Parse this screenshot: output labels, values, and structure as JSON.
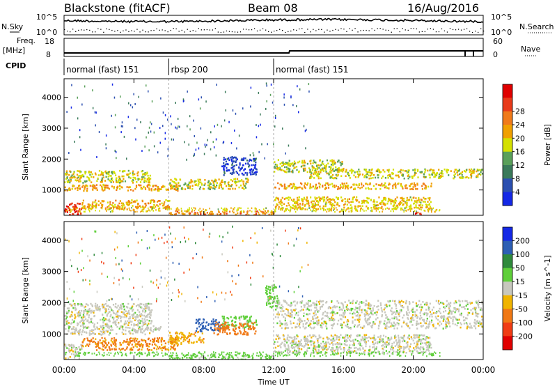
{
  "header": {
    "station": "Blackstone (fitACF)",
    "beam": "Beam 08",
    "date": "16/Aug/2016"
  },
  "top_panels": {
    "nsky_label": "N.Sky",
    "nsearch_label": "N.Search",
    "noise_ticks_left": [
      "10^5",
      "10^0"
    ],
    "noise_ticks_right": [
      "10^5",
      "10^0"
    ],
    "freq_label": "Freq.",
    "freq_unit": "[MHz]",
    "freq_ticks": [
      "18",
      "8"
    ],
    "nave_label": "Nave",
    "nave_ticks": [
      "60",
      "0"
    ],
    "cpid_label": "CPID",
    "cpid_segments": [
      {
        "label": "normal (fast) 151",
        "start_hour": 0,
        "end_hour": 6
      },
      {
        "label": "rbsp 200",
        "start_hour": 6,
        "end_hour": 12
      },
      {
        "label": "normal (fast) 151",
        "start_hour": 12,
        "end_hour": 24
      }
    ]
  },
  "chart_data": [
    {
      "type": "heatmap",
      "title": "",
      "xlabel": "Time UT",
      "ylabel": "Slant Range [km]",
      "x_ticks": [
        "00:00",
        "04:00",
        "08:00",
        "12:00",
        "16:00",
        "20:00",
        "00:00"
      ],
      "x_tick_hours": [
        0,
        4,
        8,
        12,
        16,
        20,
        24
      ],
      "xlim": [
        0,
        24
      ],
      "y_ticks": [
        1000,
        2000,
        3000,
        4000
      ],
      "ylim": [
        180,
        4600
      ],
      "colorbar": {
        "label": "Power [dB]",
        "ticks": [
          "4",
          "8",
          "12",
          "16",
          "20",
          "24",
          "28"
        ],
        "colors": [
          "#1428e6",
          "#2b4fb0",
          "#3a7a5a",
          "#5aa05a",
          "#d4e000",
          "#f0a000",
          "#f07a1a",
          "#e83a1a",
          "#e00000"
        ]
      },
      "echo_bands": [
        {
          "start_hour": 0.0,
          "end_hour": 5.0,
          "range_km": [
            1250,
            1650
          ],
          "level": 16
        },
        {
          "start_hour": 0.0,
          "end_hour": 6.5,
          "range_km": [
            1000,
            1200
          ],
          "level": 20
        },
        {
          "start_hour": 0.0,
          "end_hour": 1.0,
          "range_km": [
            200,
            600
          ],
          "level": 28
        },
        {
          "start_hour": 1.0,
          "end_hour": 6.0,
          "range_km": [
            400,
            700
          ],
          "level": 20
        },
        {
          "start_hour": 6.0,
          "end_hour": 10.5,
          "range_km": [
            1050,
            1400
          ],
          "level": 16
        },
        {
          "start_hour": 6.0,
          "end_hour": 12.0,
          "range_km": [
            200,
            350
          ],
          "level": 22
        },
        {
          "start_hour": 9.0,
          "end_hour": 11.0,
          "range_km": [
            1500,
            2100
          ],
          "level": 4
        },
        {
          "start_hour": 12.0,
          "end_hour": 16.0,
          "range_km": [
            1600,
            2000
          ],
          "level": 16
        },
        {
          "start_hour": 12.0,
          "end_hour": 21.0,
          "range_km": [
            1050,
            1250
          ],
          "level": 20
        },
        {
          "start_hour": 14.0,
          "end_hour": 24.0,
          "range_km": [
            1400,
            1700
          ],
          "level": 16
        },
        {
          "start_hour": 12.0,
          "end_hour": 21.0,
          "range_km": [
            400,
            800
          ],
          "level": 18
        },
        {
          "start_hour": 20.0,
          "end_hour": 20.6,
          "range_km": [
            200,
            300
          ],
          "level": 28
        }
      ]
    },
    {
      "type": "heatmap",
      "title": "",
      "xlabel": "Time UT",
      "ylabel": "Slant Range [km]",
      "x_ticks": [
        "00:00",
        "04:00",
        "08:00",
        "12:00",
        "16:00",
        "20:00",
        "00:00"
      ],
      "x_tick_hours": [
        0,
        4,
        8,
        12,
        16,
        20,
        24
      ],
      "xlim": [
        0,
        24
      ],
      "y_ticks": [
        1000,
        2000,
        3000,
        4000
      ],
      "ylim": [
        180,
        4600
      ],
      "colorbar": {
        "label": "Velocity [m s^-1]",
        "ticks": [
          "200",
          "100",
          "50",
          "15",
          "-15",
          "-50",
          "-100",
          "-200"
        ],
        "colors": [
          "#1428e6",
          "#2d5fb4",
          "#2f8a3c",
          "#5fcf3a",
          "#c8c8be",
          "#f0b400",
          "#f07814",
          "#f03c14",
          "#e00000"
        ]
      },
      "echo_bands": [
        {
          "start_hour": 0.0,
          "end_hour": 5.0,
          "range_km": [
            1300,
            2000
          ],
          "level": 0
        },
        {
          "start_hour": 0.0,
          "end_hour": 5.5,
          "range_km": [
            1000,
            1300
          ],
          "level": 0
        },
        {
          "start_hour": 0.0,
          "end_hour": 1.0,
          "range_km": [
            200,
            700
          ],
          "level": 0
        },
        {
          "start_hour": 1.0,
          "end_hour": 6.5,
          "range_km": [
            500,
            900
          ],
          "level": -60
        },
        {
          "start_hour": 6.0,
          "end_hour": 8.0,
          "range_km": [
            700,
            1100
          ],
          "level": -40
        },
        {
          "start_hour": 7.5,
          "end_hour": 9.0,
          "range_km": [
            1100,
            1500
          ],
          "level": 180
        },
        {
          "start_hour": 9.0,
          "end_hour": 11.0,
          "range_km": [
            1200,
            1600
          ],
          "level": 30
        },
        {
          "start_hour": 8.5,
          "end_hour": 11.0,
          "range_km": [
            1000,
            1400
          ],
          "level": -70
        },
        {
          "start_hour": 6.0,
          "end_hour": 12.0,
          "range_km": [
            200,
            350
          ],
          "level": 30
        },
        {
          "start_hour": 12.0,
          "end_hour": 24.0,
          "range_km": [
            1200,
            2100
          ],
          "level": 0
        },
        {
          "start_hour": 12.0,
          "end_hour": 21.0,
          "range_km": [
            400,
            1000
          ],
          "level": 0
        },
        {
          "start_hour": 11.5,
          "end_hour": 12.2,
          "range_km": [
            1800,
            2600
          ],
          "level": 30
        }
      ]
    }
  ],
  "time_axis_label": "Time UT"
}
